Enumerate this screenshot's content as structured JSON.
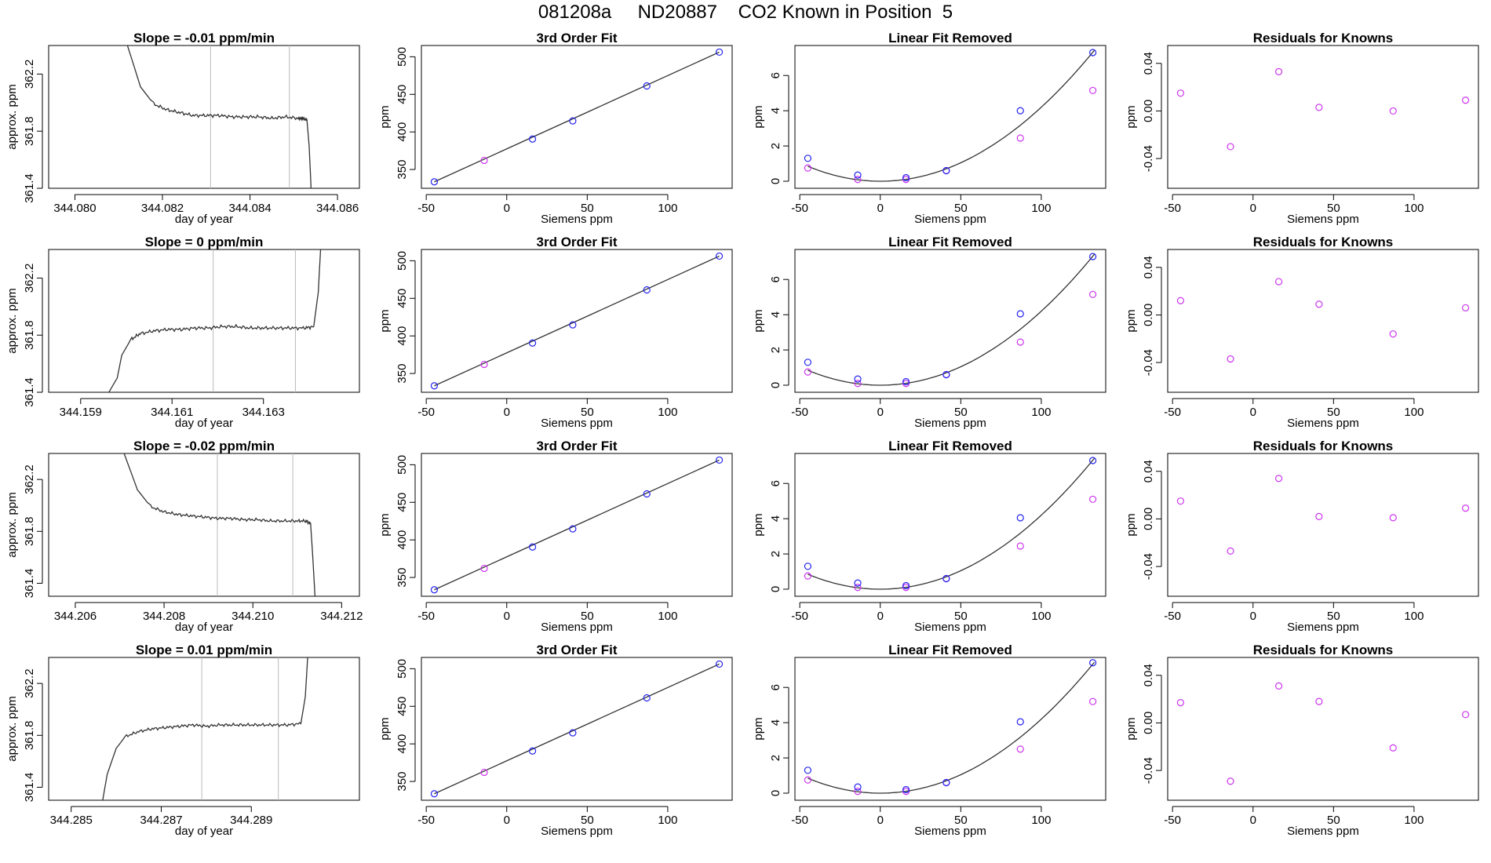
{
  "page": {
    "title": "081208a     ND20887    CO2 Known in Position  5"
  },
  "colors": {
    "axis": "#000000",
    "line": "#333333",
    "vline": "#bbbbbb",
    "blue": "#2222ee",
    "magenta": "#cc33ee",
    "cyan": "#33bbdd",
    "red": "#dd3333"
  },
  "chart_data": [
    {
      "type": "line",
      "row": 1,
      "panel": "drift",
      "title": "Slope =  -0.01  ppm/min",
      "xlabel": "day of year",
      "ylabel": "approx. ppm",
      "xlim": [
        344.0794,
        344.0865
      ],
      "ylim": [
        361.4,
        362.4
      ],
      "xticks": [
        344.08,
        344.082,
        344.084,
        344.086
      ],
      "xtick_labels": [
        "344.080",
        "344.082",
        "344.084",
        "344.086"
      ],
      "yticks": [
        361.4,
        361.8,
        362.2
      ],
      "ytick_labels": [
        "361.4",
        "361.8",
        "362.2"
      ],
      "vlines": [
        344.0831,
        344.0849
      ],
      "x": [
        344.0812,
        344.0815,
        344.0818,
        344.0821,
        344.0824,
        344.0827,
        344.083,
        344.0833,
        344.0836,
        344.0839,
        344.0842,
        344.0845,
        344.0848,
        344.0851,
        344.0852,
        344.0853,
        344.08535,
        344.0854
      ],
      "y": [
        362.4,
        362.11,
        361.99,
        361.95,
        361.93,
        361.91,
        361.91,
        361.91,
        361.9,
        361.9,
        361.9,
        361.89,
        361.9,
        361.89,
        361.89,
        361.88,
        361.7,
        361.37
      ]
    },
    {
      "type": "line",
      "row": 2,
      "panel": "drift",
      "title": "Slope =  0  ppm/min",
      "xlabel": "day of year",
      "ylabel": "approx. ppm",
      "xlim": [
        344.1583,
        344.1651
      ],
      "ylim": [
        361.4,
        362.4
      ],
      "xticks": [
        344.159,
        344.161,
        344.163
      ],
      "xtick_labels": [
        "344.159",
        "344.161",
        "344.163"
      ],
      "yticks": [
        361.4,
        361.8,
        362.2
      ],
      "ytick_labels": [
        "361.4",
        "361.8",
        "362.2"
      ],
      "vlines": [
        344.1619,
        344.1637
      ],
      "x": [
        344.1596,
        344.1598,
        344.1599,
        344.1601,
        344.1603,
        344.1606,
        344.1609,
        344.1612,
        344.1615,
        344.1618,
        344.1621,
        344.1624,
        344.1627,
        344.163,
        344.1633,
        344.1636,
        344.1639,
        344.1641,
        344.1642,
        344.16425
      ],
      "y": [
        361.39,
        361.5,
        361.66,
        361.77,
        361.81,
        361.83,
        361.84,
        361.84,
        361.85,
        361.85,
        361.86,
        361.86,
        361.85,
        361.85,
        361.85,
        361.85,
        361.85,
        361.86,
        362.1,
        362.4
      ]
    },
    {
      "type": "line",
      "row": 3,
      "panel": "drift",
      "title": "Slope =  -0.02  ppm/min",
      "xlabel": "day of year",
      "ylabel": "approx. ppm",
      "xlim": [
        344.2054,
        344.2124
      ],
      "ylim": [
        361.3,
        362.4
      ],
      "xticks": [
        344.206,
        344.208,
        344.21,
        344.212
      ],
      "xtick_labels": [
        "344.206",
        "344.208",
        "344.210",
        "344.212"
      ],
      "yticks": [
        361.4,
        361.8,
        362.2
      ],
      "ytick_labels": [
        "361.4",
        "361.8",
        "362.2"
      ],
      "vlines": [
        344.2092,
        344.2109
      ],
      "x": [
        344.2071,
        344.2074,
        344.2077,
        344.208,
        344.2083,
        344.2086,
        344.2089,
        344.2092,
        344.2095,
        344.2098,
        344.2101,
        344.2104,
        344.2107,
        344.211,
        344.2112,
        344.2113,
        344.21135,
        344.2114
      ],
      "y": [
        362.4,
        362.12,
        361.99,
        361.95,
        361.93,
        361.92,
        361.91,
        361.9,
        361.9,
        361.89,
        361.89,
        361.88,
        361.88,
        361.88,
        361.88,
        361.86,
        361.6,
        361.3
      ]
    },
    {
      "type": "line",
      "row": 4,
      "panel": "drift",
      "title": "Slope =  0.01  ppm/min",
      "xlabel": "day of year",
      "ylabel": "approx. ppm",
      "xlim": [
        344.2845,
        344.2914
      ],
      "ylim": [
        361.3,
        362.4
      ],
      "xticks": [
        344.285,
        344.287,
        344.289
      ],
      "xtick_labels": [
        "344.285",
        "344.287",
        "344.289"
      ],
      "yticks": [
        361.4,
        361.8,
        362.2
      ],
      "ytick_labels": [
        "361.4",
        "361.8",
        "362.2"
      ],
      "vlines": [
        344.2879,
        344.2896
      ],
      "x": [
        344.2857,
        344.2858,
        344.286,
        344.2862,
        344.2865,
        344.2868,
        344.2871,
        344.2874,
        344.2877,
        344.288,
        344.2883,
        344.2886,
        344.2889,
        344.2892,
        344.2895,
        344.2898,
        344.2901,
        344.2902,
        344.29025
      ],
      "y": [
        361.3,
        361.5,
        361.7,
        361.79,
        361.83,
        361.85,
        361.86,
        361.87,
        361.88,
        361.87,
        361.88,
        361.88,
        361.88,
        361.88,
        361.88,
        361.88,
        361.89,
        362.1,
        362.4
      ]
    },
    {
      "type": "scatter",
      "row": 1,
      "panel": "fit",
      "title": "3rd Order Fit",
      "xlabel": "Siemens ppm",
      "ylabel": "ppm",
      "xlim": [
        -53,
        140
      ],
      "ylim": [
        325,
        515
      ],
      "xticks": [
        -50,
        0,
        50,
        100
      ],
      "xtick_labels": [
        "-50",
        "0",
        "50",
        "100"
      ],
      "yticks": [
        350,
        400,
        450,
        500
      ],
      "ytick_labels": [
        "350",
        "400",
        "450",
        "500"
      ],
      "x": [
        -45,
        -14,
        16,
        41,
        87,
        132
      ],
      "y": [
        333.6,
        362.1,
        390.5,
        414.7,
        461.2,
        506.2
      ]
    },
    {
      "type": "scatter",
      "row": 2,
      "panel": "fit",
      "title": "3rd Order Fit",
      "xlabel": "Siemens ppm",
      "ylabel": "ppm",
      "xlim": [
        -53,
        140
      ],
      "ylim": [
        325,
        515
      ],
      "xticks": [
        -50,
        0,
        50,
        100
      ],
      "xtick_labels": [
        "-50",
        "0",
        "50",
        "100"
      ],
      "yticks": [
        350,
        400,
        450,
        500
      ],
      "ytick_labels": [
        "350",
        "400",
        "450",
        "500"
      ],
      "x": [
        -45,
        -14,
        16,
        41,
        87,
        132
      ],
      "y": [
        333.6,
        362.1,
        390.5,
        414.7,
        461.2,
        506.2
      ]
    },
    {
      "type": "scatter",
      "row": 3,
      "panel": "fit",
      "title": "3rd Order Fit",
      "xlabel": "Siemens ppm",
      "ylabel": "ppm",
      "xlim": [
        -53,
        140
      ],
      "ylim": [
        325,
        515
      ],
      "xticks": [
        -50,
        0,
        50,
        100
      ],
      "xtick_labels": [
        "-50",
        "0",
        "50",
        "100"
      ],
      "yticks": [
        350,
        400,
        450,
        500
      ],
      "ytick_labels": [
        "350",
        "400",
        "450",
        "500"
      ],
      "x": [
        -45,
        -14,
        16,
        41,
        87,
        132
      ],
      "y": [
        333.6,
        362.1,
        390.5,
        414.7,
        461.2,
        506.2
      ]
    },
    {
      "type": "scatter",
      "row": 4,
      "panel": "fit",
      "title": "3rd Order Fit",
      "xlabel": "Siemens ppm",
      "ylabel": "ppm",
      "xlim": [
        -53,
        140
      ],
      "ylim": [
        325,
        515
      ],
      "xticks": [
        -50,
        0,
        50,
        100
      ],
      "xtick_labels": [
        "-50",
        "0",
        "50",
        "100"
      ],
      "yticks": [
        350,
        400,
        450,
        500
      ],
      "ytick_labels": [
        "350",
        "400",
        "450",
        "500"
      ],
      "x": [
        -45,
        -14,
        16,
        41,
        87,
        132
      ],
      "y": [
        333.6,
        362.1,
        390.5,
        414.7,
        461.2,
        506.2
      ]
    },
    {
      "type": "scatter",
      "row": 1,
      "panel": "linrem",
      "title": "Linear Fit Removed",
      "xlabel": "Siemens ppm",
      "ylabel": "ppm",
      "xlim": [
        -53,
        140
      ],
      "ylim": [
        -0.4,
        7.7
      ],
      "xticks": [
        -50,
        0,
        50,
        100
      ],
      "xtick_labels": [
        "-50",
        "0",
        "50",
        "100"
      ],
      "yticks": [
        0,
        2,
        4,
        6
      ],
      "ytick_labels": [
        "0",
        "2",
        "4",
        "6"
      ],
      "x": [
        -45,
        -14,
        16,
        41,
        87,
        132
      ],
      "y_blue": [
        1.3,
        0.35,
        0.2,
        0.6,
        4.0,
        7.3
      ],
      "y_magenta": [
        0.75,
        0.1,
        0.1,
        0.6,
        2.45,
        5.15
      ],
      "curve_coef": [
        0.00042,
        0,
        0
      ]
    },
    {
      "type": "scatter",
      "row": 2,
      "panel": "linrem",
      "title": "Linear Fit Removed",
      "xlabel": "Siemens ppm",
      "ylabel": "ppm",
      "xlim": [
        -53,
        140
      ],
      "ylim": [
        -0.4,
        7.7
      ],
      "xticks": [
        -50,
        0,
        50,
        100
      ],
      "xtick_labels": [
        "-50",
        "0",
        "50",
        "100"
      ],
      "yticks": [
        0,
        2,
        4,
        6
      ],
      "ytick_labels": [
        "0",
        "2",
        "4",
        "6"
      ],
      "x": [
        -45,
        -14,
        16,
        41,
        87,
        132
      ],
      "y_blue": [
        1.3,
        0.35,
        0.2,
        0.6,
        4.05,
        7.3
      ],
      "y_magenta": [
        0.75,
        0.1,
        0.1,
        0.6,
        2.45,
        5.15
      ],
      "curve_coef": [
        0.00042,
        0,
        0
      ]
    },
    {
      "type": "scatter",
      "row": 3,
      "panel": "linrem",
      "title": "Linear Fit Removed",
      "xlabel": "Siemens ppm",
      "ylabel": "ppm",
      "xlim": [
        -53,
        140
      ],
      "ylim": [
        -0.4,
        7.7
      ],
      "xticks": [
        -50,
        0,
        50,
        100
      ],
      "xtick_labels": [
        "-50",
        "0",
        "50",
        "100"
      ],
      "yticks": [
        0,
        2,
        4,
        6
      ],
      "ytick_labels": [
        "0",
        "2",
        "4",
        "6"
      ],
      "x": [
        -45,
        -14,
        16,
        41,
        87,
        132
      ],
      "y_blue": [
        1.3,
        0.35,
        0.2,
        0.6,
        4.05,
        7.3
      ],
      "y_magenta": [
        0.75,
        0.1,
        0.1,
        0.6,
        2.45,
        5.1
      ],
      "curve_coef": [
        0.00042,
        0,
        0
      ]
    },
    {
      "type": "scatter",
      "row": 4,
      "panel": "linrem",
      "title": "Linear Fit Removed",
      "xlabel": "Siemens ppm",
      "ylabel": "ppm",
      "xlim": [
        -53,
        140
      ],
      "ylim": [
        -0.4,
        7.7
      ],
      "xticks": [
        -50,
        0,
        50,
        100
      ],
      "xtick_labels": [
        "-50",
        "0",
        "50",
        "100"
      ],
      "yticks": [
        0,
        2,
        4,
        6
      ],
      "ytick_labels": [
        "0",
        "2",
        "4",
        "6"
      ],
      "x": [
        -45,
        -14,
        16,
        41,
        87,
        132
      ],
      "y_blue": [
        1.3,
        0.35,
        0.2,
        0.6,
        4.05,
        7.4
      ],
      "y_magenta": [
        0.75,
        0.1,
        0.1,
        0.6,
        2.5,
        5.2
      ],
      "curve_coef": [
        0.00042,
        0,
        0
      ]
    },
    {
      "type": "scatter",
      "row": 1,
      "panel": "resid",
      "title": "Residuals for Knowns",
      "xlabel": "Siemens ppm",
      "ylabel": "ppm",
      "xlim": [
        -53,
        140
      ],
      "ylim": [
        -0.065,
        0.055
      ],
      "xticks": [
        -50,
        0,
        50,
        100
      ],
      "xtick_labels": [
        "-50",
        "0",
        "50",
        "100"
      ],
      "yticks": [
        -0.04,
        0,
        0.04
      ],
      "ytick_labels": [
        "-0.04",
        "0.00",
        "0.04"
      ],
      "x": [
        -45,
        -14,
        16,
        41,
        87,
        132
      ],
      "y": [
        0.015,
        -0.03,
        0.033,
        0.003,
        0.0,
        0.009
      ]
    },
    {
      "type": "scatter",
      "row": 2,
      "panel": "resid",
      "title": "Residuals for Knowns",
      "xlabel": "Siemens ppm",
      "ylabel": "ppm",
      "xlim": [
        -53,
        140
      ],
      "ylim": [
        -0.065,
        0.055
      ],
      "xticks": [
        -50,
        0,
        50,
        100
      ],
      "xtick_labels": [
        "-50",
        "0",
        "50",
        "100"
      ],
      "yticks": [
        -0.04,
        0,
        0.04
      ],
      "ytick_labels": [
        "-0.04",
        "0.00",
        "0.04"
      ],
      "x": [
        -45,
        -14,
        16,
        41,
        87,
        132
      ],
      "y": [
        0.012,
        -0.037,
        0.028,
        0.009,
        -0.016,
        0.006
      ]
    },
    {
      "type": "scatter",
      "row": 3,
      "panel": "resid",
      "title": "Residuals for Knowns",
      "xlabel": "Siemens ppm",
      "ylabel": "ppm",
      "xlim": [
        -53,
        140
      ],
      "ylim": [
        -0.065,
        0.055
      ],
      "xticks": [
        -50,
        0,
        50,
        100
      ],
      "xtick_labels": [
        "-50",
        "0",
        "50",
        "100"
      ],
      "yticks": [
        -0.04,
        0,
        0.04
      ],
      "ytick_labels": [
        "-0.04",
        "0.00",
        "0.04"
      ],
      "x": [
        -45,
        -14,
        16,
        41,
        87,
        132
      ],
      "y": [
        0.015,
        -0.027,
        0.034,
        0.002,
        0.001,
        0.009
      ]
    },
    {
      "type": "scatter",
      "row": 4,
      "panel": "resid",
      "title": "Residuals for Knowns",
      "xlabel": "Siemens ppm",
      "ylabel": "ppm",
      "xlim": [
        -53,
        140
      ],
      "ylim": [
        -0.065,
        0.055
      ],
      "xticks": [
        -50,
        0,
        50,
        100
      ],
      "xtick_labels": [
        "-50",
        "0",
        "50",
        "100"
      ],
      "yticks": [
        -0.04,
        0,
        0.04
      ],
      "ytick_labels": [
        "-0.04",
        "0.00",
        "0.04"
      ],
      "x": [
        -45,
        -14,
        16,
        41,
        87,
        132
      ],
      "y": [
        0.017,
        -0.049,
        0.031,
        0.018,
        -0.021,
        0.007
      ]
    }
  ]
}
